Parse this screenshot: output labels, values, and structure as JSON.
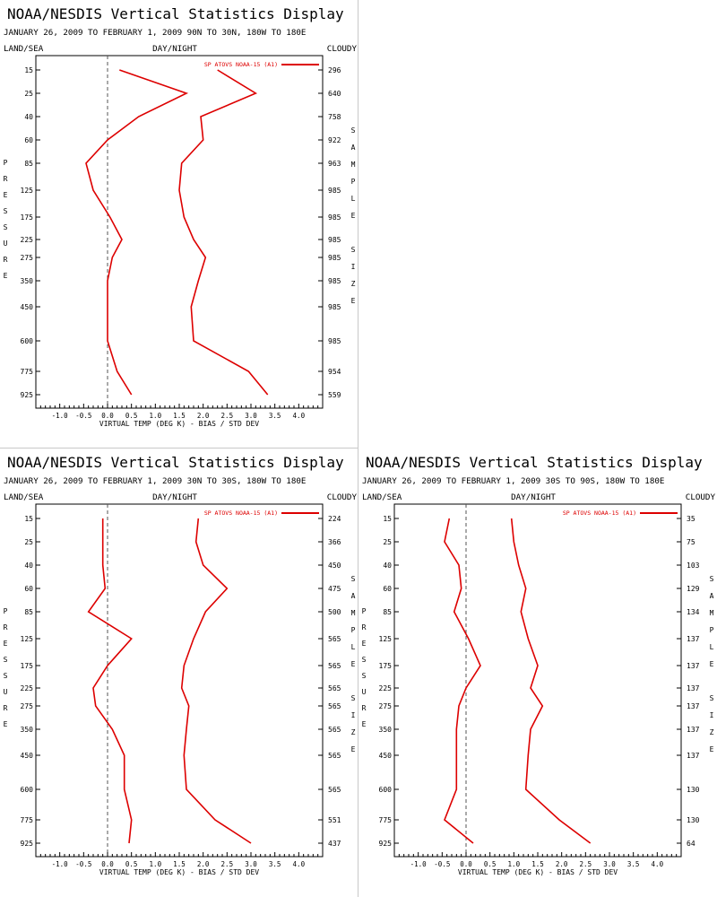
{
  "colors": {
    "series": "#dd0000",
    "axis": "#000000",
    "zero_line": "#555555"
  },
  "chart_data": [
    {
      "type": "line",
      "title": "NOAA/NESDIS Vertical Statistics Display",
      "subtitle": "JANUARY 26, 2009 TO FEBRUARY 1, 2009 90N TO 30N, 180W TO 180E",
      "header_left": "LAND/SEA",
      "header_center": "DAY/NIGHT",
      "header_right": "CLOUDY",
      "xlabel": "VIRTUAL TEMP (DEG K) - BIAS / STD DEV",
      "ylabel": "PRESSURE",
      "y2label": "SAMPLE SIZE",
      "xlim": [
        -1.5,
        4.5
      ],
      "xticks": [
        "-1.0",
        "-0.5",
        "0.0",
        "0.5",
        "1.0",
        "1.5",
        "2.0",
        "2.5",
        "3.0",
        "3.5",
        "4.0"
      ],
      "levels": [
        "15",
        "25",
        "40",
        "60",
        "85",
        "125",
        "175",
        "225",
        "275",
        "350",
        "450",
        "600",
        "775",
        "925"
      ],
      "sample_size": [
        "296",
        "640",
        "758",
        "922",
        "963",
        "985",
        "985",
        "985",
        "985",
        "985",
        "985",
        "985",
        "954",
        "559"
      ],
      "legend": "SP ATOVS NOAA-15 (A1)",
      "series": [
        {
          "name": "bias",
          "values": [
            0.25,
            1.65,
            0.65,
            0.0,
            -0.45,
            -0.3,
            0.05,
            0.3,
            0.1,
            0.0,
            0.0,
            0.0,
            0.2,
            0.5
          ]
        },
        {
          "name": "std_dev",
          "values": [
            2.3,
            3.1,
            1.95,
            2.0,
            1.55,
            1.5,
            1.6,
            1.8,
            2.05,
            1.9,
            1.75,
            1.8,
            2.95,
            3.35
          ]
        }
      ]
    },
    {
      "type": "line",
      "title": "NOAA/NESDIS Vertical Statistics Display",
      "subtitle": "JANUARY 26, 2009 TO FEBRUARY 1, 2009 30N TO 30S, 180W TO 180E",
      "header_left": "LAND/SEA",
      "header_center": "DAY/NIGHT",
      "header_right": "CLOUDY",
      "xlabel": "VIRTUAL TEMP (DEG K) - BIAS / STD DEV",
      "ylabel": "PRESSURE",
      "y2label": "SAMPLE SIZE",
      "xlim": [
        -1.5,
        4.5
      ],
      "xticks": [
        "-1.0",
        "-0.5",
        "0.0",
        "0.5",
        "1.0",
        "1.5",
        "2.0",
        "2.5",
        "3.0",
        "3.5",
        "4.0"
      ],
      "levels": [
        "15",
        "25",
        "40",
        "60",
        "85",
        "125",
        "175",
        "225",
        "275",
        "350",
        "450",
        "600",
        "775",
        "925"
      ],
      "sample_size": [
        "224",
        "366",
        "450",
        "475",
        "500",
        "565",
        "565",
        "565",
        "565",
        "565",
        "565",
        "565",
        "551",
        "437"
      ],
      "legend": "SP ATOVS NOAA-15 (A1)",
      "series": [
        {
          "name": "bias",
          "values": [
            -0.1,
            -0.1,
            -0.1,
            -0.05,
            -0.4,
            0.5,
            0.0,
            -0.3,
            -0.25,
            0.1,
            0.35,
            0.35,
            0.5,
            0.45
          ]
        },
        {
          "name": "std_dev",
          "values": [
            1.9,
            1.85,
            2.0,
            2.5,
            2.05,
            1.8,
            1.6,
            1.55,
            1.7,
            1.65,
            1.6,
            1.65,
            2.25,
            3.0
          ]
        }
      ]
    },
    {
      "type": "line",
      "title": "NOAA/NESDIS Vertical Statistics Display",
      "subtitle": "JANUARY 26, 2009 TO FEBRUARY 1, 2009 30S TO 90S, 180W TO 180E",
      "header_left": "LAND/SEA",
      "header_center": "DAY/NIGHT",
      "header_right": "CLOUDY",
      "xlabel": "VIRTUAL TEMP (DEG K) - BIAS / STD DEV",
      "ylabel": "PRESSURE",
      "y2label": "SAMPLE SIZE",
      "xlim": [
        -1.5,
        4.5
      ],
      "xticks": [
        "-1.0",
        "-0.5",
        "0.0",
        "0.5",
        "1.0",
        "1.5",
        "2.0",
        "2.5",
        "3.0",
        "3.5",
        "4.0"
      ],
      "levels": [
        "15",
        "25",
        "40",
        "60",
        "85",
        "125",
        "175",
        "225",
        "275",
        "350",
        "450",
        "600",
        "775",
        "925"
      ],
      "sample_size": [
        "35",
        "75",
        "103",
        "129",
        "134",
        "137",
        "137",
        "137",
        "137",
        "137",
        "137",
        "130",
        "130",
        "64"
      ],
      "legend": "SP ATOVS NOAA-15 (A1)",
      "series": [
        {
          "name": "bias",
          "values": [
            -0.35,
            -0.45,
            -0.15,
            -0.1,
            -0.25,
            0.05,
            0.3,
            0.0,
            -0.15,
            -0.2,
            -0.2,
            -0.2,
            -0.45,
            0.15
          ]
        },
        {
          "name": "std_dev",
          "values": [
            0.95,
            1.0,
            1.1,
            1.25,
            1.15,
            1.3,
            1.5,
            1.35,
            1.6,
            1.35,
            1.3,
            1.25,
            1.95,
            2.6
          ]
        }
      ]
    }
  ]
}
